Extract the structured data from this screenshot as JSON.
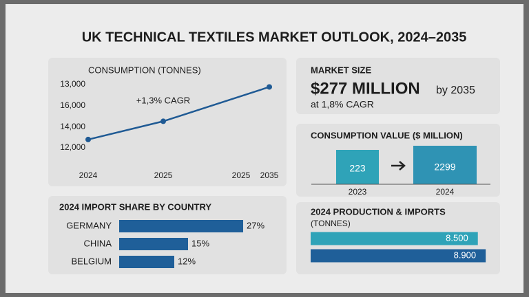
{
  "title": "UK TECHNICAL TEXTILES MARKET OUTLOOK, 2024–2035",
  "market_size": {
    "label": "MARKET SIZE",
    "value": "$277 MILLION",
    "suffix": "by 2035",
    "note": "at 1,8% CAGR"
  },
  "consumption_value": {
    "title": "CONSUMPTION VALUE ($ MILLION)",
    "items": [
      {
        "year": "2023",
        "value": "223"
      },
      {
        "year": "2024",
        "value": "2299"
      }
    ]
  },
  "chart_data": [
    {
      "type": "line",
      "title": "CONSUMPTION (TONNES)",
      "annotation": "+1,3% CAGR",
      "x_labels": [
        "2024",
        "2025",
        "2025",
        "2035"
      ],
      "y_labels": [
        "13,000",
        "16,000",
        "14,000",
        "12,000"
      ],
      "values": [
        12800,
        14500,
        17700
      ],
      "color": "#1f5a94",
      "ylim": [
        11000,
        18500
      ]
    },
    {
      "type": "hbar",
      "title": "2024 IMPORT SHARE BY COUNTRY",
      "categories": [
        "GERMANY",
        "CHINA",
        "BELGIUM"
      ],
      "values": [
        27,
        15,
        12
      ],
      "value_labels": [
        "27%",
        "15%",
        "12%"
      ],
      "color": "#1f5f99",
      "xlim": [
        0,
        30
      ]
    },
    {
      "type": "hbar",
      "title": "2024 PRODUCTION & IMPORTS",
      "subtitle": "(TONNES)",
      "values": [
        8500,
        8900
      ],
      "value_labels": [
        "8.500",
        "8.900"
      ],
      "colors": [
        "#2fa3b8",
        "#1f5f99"
      ],
      "xlim": [
        0,
        9000
      ]
    }
  ]
}
